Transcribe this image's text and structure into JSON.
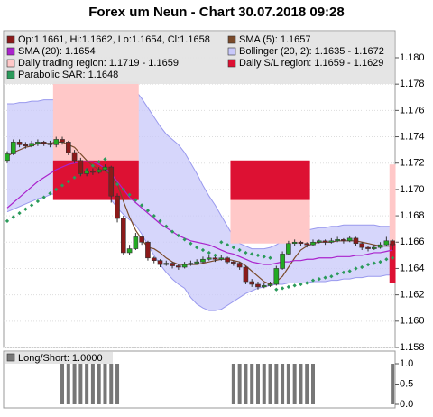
{
  "chart_data": {
    "type": "candlestick",
    "title": "Forex um Neun - Chart 30.07.2018 09:28",
    "ylim": [
      1.158,
      1.182
    ],
    "yticks": [
      {
        "value": 1.158,
        "label": "1.158"
      },
      {
        "value": 1.16,
        "label": "1.160"
      },
      {
        "value": 1.162,
        "label": "1.162"
      },
      {
        "value": 1.164,
        "label": "1.164"
      },
      {
        "value": 1.166,
        "label": "1.166"
      },
      {
        "value": 1.168,
        "label": "1.168"
      },
      {
        "value": 1.17,
        "label": "1.170"
      },
      {
        "value": 1.172,
        "label": "1.172"
      },
      {
        "value": 1.174,
        "label": "1.174"
      },
      {
        "value": 1.176,
        "label": "1.176"
      },
      {
        "value": 1.178,
        "label": "1.178"
      },
      {
        "value": 1.18,
        "label": "1.180"
      }
    ],
    "grid": true,
    "candles_name": "Op:1.1661, Hi:1.1662, Lo:1.1654, Cl:1.1658",
    "candles_color": "#8b1a1a",
    "up_color": "#22aa22",
    "down_color": "#8b1a1a",
    "candles": [
      [
        1.1722,
        1.1729,
        1.172,
        1.1727
      ],
      [
        1.1727,
        1.1738,
        1.1726,
        1.1736
      ],
      [
        1.1736,
        1.1738,
        1.1732,
        1.1734
      ],
      [
        1.1734,
        1.1736,
        1.1731,
        1.1733
      ],
      [
        1.1733,
        1.1737,
        1.1732,
        1.1735
      ],
      [
        1.1735,
        1.1738,
        1.1733,
        1.1736
      ],
      [
        1.1736,
        1.1737,
        1.1733,
        1.1735
      ],
      [
        1.1735,
        1.1737,
        1.1732,
        1.1734
      ],
      [
        1.1734,
        1.174,
        1.1732,
        1.1738
      ],
      [
        1.1738,
        1.174,
        1.1734,
        1.1736
      ],
      [
        1.1736,
        1.1737,
        1.1726,
        1.1728
      ],
      [
        1.1728,
        1.173,
        1.172,
        1.1722
      ],
      [
        1.1722,
        1.1724,
        1.171,
        1.1712
      ],
      [
        1.1712,
        1.1716,
        1.171,
        1.1714
      ],
      [
        1.1714,
        1.1716,
        1.1711,
        1.1713
      ],
      [
        1.1713,
        1.1717,
        1.1712,
        1.1715
      ],
      [
        1.1715,
        1.1719,
        1.1714,
        1.1717
      ],
      [
        1.1717,
        1.1718,
        1.169,
        1.1695
      ],
      [
        1.1695,
        1.1697,
        1.1675,
        1.1678
      ],
      [
        1.1678,
        1.168,
        1.165,
        1.1652
      ],
      [
        1.1652,
        1.1658,
        1.165,
        1.1655
      ],
      [
        1.1655,
        1.1667,
        1.1654,
        1.1664
      ],
      [
        1.1664,
        1.1665,
        1.1658,
        1.166
      ],
      [
        1.166,
        1.1661,
        1.1646,
        1.1648
      ],
      [
        1.1648,
        1.1649,
        1.1644,
        1.1646
      ],
      [
        1.1646,
        1.1647,
        1.1641,
        1.1643
      ],
      [
        1.1643,
        1.1646,
        1.1642,
        1.1644
      ],
      [
        1.1644,
        1.1645,
        1.164,
        1.1642
      ],
      [
        1.1642,
        1.1643,
        1.1639,
        1.1641
      ],
      [
        1.1641,
        1.1645,
        1.164,
        1.1643
      ],
      [
        1.1643,
        1.1646,
        1.1642,
        1.1644
      ],
      [
        1.1644,
        1.1647,
        1.1643,
        1.1645
      ],
      [
        1.1645,
        1.1649,
        1.1644,
        1.1647
      ],
      [
        1.1647,
        1.165,
        1.1646,
        1.1648
      ],
      [
        1.1648,
        1.1649,
        1.1645,
        1.1647
      ],
      [
        1.1647,
        1.165,
        1.1646,
        1.1648
      ],
      [
        1.1648,
        1.1649,
        1.1643,
        1.1645
      ],
      [
        1.1645,
        1.1646,
        1.1642,
        1.1644
      ],
      [
        1.1644,
        1.1645,
        1.1639,
        1.1641
      ],
      [
        1.1641,
        1.1642,
        1.1628,
        1.163
      ],
      [
        1.163,
        1.1632,
        1.1626,
        1.1628
      ],
      [
        1.1628,
        1.163,
        1.1624,
        1.1626
      ],
      [
        1.1626,
        1.1629,
        1.1625,
        1.1627
      ],
      [
        1.1627,
        1.163,
        1.1626,
        1.1628
      ],
      [
        1.1628,
        1.1642,
        1.1627,
        1.164
      ],
      [
        1.164,
        1.1653,
        1.1639,
        1.1651
      ],
      [
        1.1651,
        1.1661,
        1.165,
        1.1659
      ],
      [
        1.1659,
        1.1662,
        1.1657,
        1.166
      ],
      [
        1.166,
        1.1661,
        1.1657,
        1.1659
      ],
      [
        1.1659,
        1.166,
        1.1656,
        1.1658
      ],
      [
        1.1658,
        1.1662,
        1.1657,
        1.166
      ],
      [
        1.166,
        1.1662,
        1.1659,
        1.1661
      ],
      [
        1.1661,
        1.1662,
        1.1658,
        1.166
      ],
      [
        1.166,
        1.1663,
        1.1659,
        1.1661
      ],
      [
        1.1661,
        1.1664,
        1.166,
        1.1662
      ],
      [
        1.1662,
        1.1663,
        1.1659,
        1.1661
      ],
      [
        1.1661,
        1.1665,
        1.166,
        1.1663
      ],
      [
        1.1663,
        1.1664,
        1.1657,
        1.1659
      ],
      [
        1.1659,
        1.166,
        1.1654,
        1.1656
      ],
      [
        1.1656,
        1.1657,
        1.1653,
        1.1655
      ],
      [
        1.1655,
        1.1658,
        1.1654,
        1.1656
      ],
      [
        1.1656,
        1.166,
        1.1655,
        1.1658
      ],
      [
        1.1658,
        1.1664,
        1.1657,
        1.1661
      ],
      [
        1.1661,
        1.1662,
        1.1654,
        1.1658
      ]
    ],
    "band": {
      "name": "Bollinger (20, 2): 1.1635 - 1.1672",
      "color": "#9999ee",
      "fill": "#c8c8fa",
      "upper": [
        1.1765,
        1.1765,
        1.1766,
        1.1766,
        1.1767,
        1.1767,
        1.1768,
        1.1768,
        1.1768,
        1.177,
        1.1772,
        1.1774,
        1.1776,
        1.1778,
        1.178,
        1.1781,
        1.1782,
        1.1782,
        1.1782,
        1.1781,
        1.1779,
        1.1775,
        1.1769,
        1.1762,
        1.1755,
        1.1748,
        1.1742,
        1.1738,
        1.1734,
        1.1728,
        1.172,
        1.1712,
        1.1703,
        1.1695,
        1.1688,
        1.168,
        1.1672,
        1.1664,
        1.1659,
        1.1657,
        1.1655,
        1.1655,
        1.1655,
        1.1656,
        1.1658,
        1.1661,
        1.1664,
        1.1666,
        1.1668,
        1.1669,
        1.167,
        1.1671,
        1.1671,
        1.1672,
        1.1672,
        1.1673,
        1.1673,
        1.1673,
        1.1673,
        1.1673,
        1.1673,
        1.1672,
        1.1672,
        1.1672
      ],
      "lower": [
        1.1683,
        1.1685,
        1.1687,
        1.1689,
        1.1691,
        1.1693,
        1.1694,
        1.1696,
        1.1697,
        1.1699,
        1.1701,
        1.1703,
        1.1705,
        1.1706,
        1.1707,
        1.1704,
        1.1698,
        1.1692,
        1.1686,
        1.1681,
        1.1677,
        1.1673,
        1.1666,
        1.1658,
        1.165,
        1.1643,
        1.1637,
        1.1632,
        1.1628,
        1.1625,
        1.1618,
        1.1613,
        1.161,
        1.1608,
        1.1608,
        1.1609,
        1.1612,
        1.1615,
        1.1618,
        1.1621,
        1.1623,
        1.1625,
        1.1626,
        1.1627,
        1.1628,
        1.1628,
        1.1629,
        1.1629,
        1.1629,
        1.1629,
        1.163,
        1.163,
        1.163,
        1.1631,
        1.1631,
        1.1632,
        1.1632,
        1.1633,
        1.1633,
        1.1634,
        1.1634,
        1.1634,
        1.1635,
        1.1635
      ]
    },
    "overlays": [
      {
        "name": "SMA (5): 1.1657",
        "color": "#7a4a2a",
        "kind": "line",
        "values": [
          1.1725,
          1.1728,
          1.173,
          1.1732,
          1.1733,
          1.1735,
          1.1735,
          1.1735,
          1.1736,
          1.1736,
          1.1734,
          1.1732,
          1.1727,
          1.1722,
          1.1718,
          1.1715,
          1.1714,
          1.1711,
          1.1704,
          1.1691,
          1.1679,
          1.1669,
          1.1662,
          1.1656,
          1.1655,
          1.1652,
          1.1648,
          1.1645,
          1.1643,
          1.1643,
          1.1643,
          1.1643,
          1.1644,
          1.1645,
          1.1646,
          1.1647,
          1.1647,
          1.1646,
          1.1645,
          1.1642,
          1.1638,
          1.1634,
          1.163,
          1.1628,
          1.163,
          1.1634,
          1.1641,
          1.1648,
          1.1654,
          1.1657,
          1.1659,
          1.166,
          1.166,
          1.166,
          1.1661,
          1.1661,
          1.1661,
          1.1661,
          1.166,
          1.1659,
          1.1658,
          1.1657,
          1.1657,
          1.1657
        ]
      },
      {
        "name": "SMA (20): 1.1654",
        "color": "#aa22cc",
        "kind": "line",
        "values": [
          1.1686,
          1.169,
          1.1694,
          1.1698,
          1.1702,
          1.1706,
          1.1709,
          1.1712,
          1.1715,
          1.1717,
          1.1719,
          1.172,
          1.1721,
          1.1721,
          1.1721,
          1.1719,
          1.1716,
          1.1712,
          1.1706,
          1.17,
          1.1694,
          1.169,
          1.1686,
          1.1682,
          1.1678,
          1.1674,
          1.1671,
          1.1668,
          1.1665,
          1.1663,
          1.1661,
          1.166,
          1.1659,
          1.1658,
          1.1656,
          1.1654,
          1.1652,
          1.1651,
          1.1649,
          1.1647,
          1.1645,
          1.1644,
          1.1643,
          1.1643,
          1.1644,
          1.1645,
          1.1645,
          1.1646,
          1.1646,
          1.1647,
          1.1647,
          1.1648,
          1.1648,
          1.1648,
          1.1649,
          1.1649,
          1.1649,
          1.165,
          1.165,
          1.1651,
          1.1652,
          1.1652,
          1.1653,
          1.1654
        ]
      },
      {
        "name": "Parabolic SAR: 1.1648",
        "color": "#2a9a5a",
        "kind": "dots",
        "values": [
          1.1676,
          1.1679,
          1.1682,
          1.1685,
          1.1688,
          1.1691,
          1.1694,
          1.1697,
          1.17,
          1.1703,
          1.1706,
          1.1709,
          1.1712,
          1.1715,
          1.1718,
          1.1721,
          1.1723,
          1.1708,
          1.1704,
          1.17,
          1.1696,
          1.1692,
          1.1688,
          1.1684,
          1.168,
          1.1676,
          1.1672,
          1.1668,
          1.1665,
          1.1662,
          1.1659,
          1.1656,
          1.1654,
          1.1652,
          1.165,
          1.166,
          1.1658,
          1.1656,
          1.1654,
          1.1652,
          1.1651,
          1.165,
          1.1649,
          1.1648,
          1.1624,
          1.1625,
          1.1626,
          1.1627,
          1.1628,
          1.1629,
          1.1631,
          1.1632,
          1.1633,
          1.1634,
          1.1636,
          1.1637,
          1.1638,
          1.164,
          1.1641,
          1.1643,
          1.1644,
          1.1645,
          1.1647,
          1.1648
        ]
      }
    ],
    "regions": {
      "trading_name": "Daily trading region: 1.1719 - 1.1659",
      "trading_color": "#ffc8c8",
      "sl_name": "Daily S/L region: 1.1659 - 1.1629",
      "sl_color": "#dd1133",
      "days": [
        {
          "start": 7.5,
          "end": 21.5,
          "trading": [
            1.1782,
            1.1722
          ],
          "sl": [
            1.1722,
            1.1692
          ]
        },
        {
          "start": 36.5,
          "end": 49.5,
          "trading": [
            1.1722,
            1.1659
          ],
          "sl": [
            1.1722,
            1.1692
          ]
        },
        {
          "start": 62.5,
          "end": 63.5,
          "trading": [
            1.1719,
            1.1659
          ],
          "sl": [
            1.1659,
            1.1629
          ]
        }
      ]
    },
    "indicator": {
      "type": "bar",
      "name": "Long/Short: 1.0000",
      "color": "#777777",
      "ylim": [
        0,
        1.2
      ],
      "yticks": [
        {
          "value": 0,
          "label": "0.0"
        },
        {
          "value": 0.5,
          "label": "0.5"
        },
        {
          "value": 1,
          "label": "1.0"
        }
      ],
      "values": [
        0,
        0,
        0,
        0,
        0,
        0,
        0,
        0,
        0,
        1,
        1,
        1,
        1,
        1,
        1,
        1,
        1,
        1,
        1,
        0,
        0,
        0,
        0,
        0,
        0,
        0,
        0,
        0,
        0,
        0,
        0,
        0,
        0,
        0,
        0,
        0,
        0,
        1,
        1,
        1,
        1,
        1,
        1,
        1,
        1,
        1,
        1,
        1,
        1,
        1,
        1,
        0,
        0,
        0,
        0,
        0,
        0,
        0,
        0,
        0,
        0,
        0,
        0,
        1
      ]
    }
  }
}
